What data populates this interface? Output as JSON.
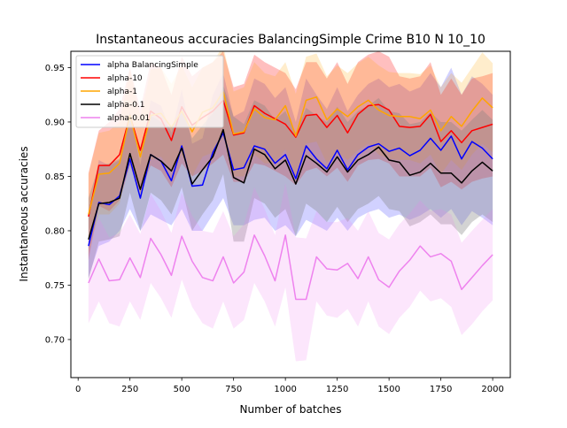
{
  "chart_data": {
    "type": "line",
    "title": "Instantaneous accuracies BalancingSimple Crime B10 N 10_10",
    "xlabel": "Number of batches",
    "ylabel": "Instantaneous accuracies",
    "xlim": [
      -35,
      2085
    ],
    "ylim": [
      0.665,
      0.965
    ],
    "xticks": [
      0,
      250,
      500,
      750,
      1000,
      1250,
      1500,
      1750,
      2000
    ],
    "yticks": [
      0.7,
      0.75,
      0.8,
      0.85,
      0.9,
      0.95
    ],
    "ytick_labels": [
      "0.70",
      "0.75",
      "0.80",
      "0.85",
      "0.90",
      "0.95"
    ],
    "grid": false,
    "legend_position": "top-left",
    "x": [
      50,
      100,
      150,
      200,
      250,
      300,
      350,
      400,
      450,
      500,
      550,
      600,
      650,
      700,
      750,
      800,
      850,
      900,
      950,
      1000,
      1050,
      1100,
      1150,
      1200,
      1250,
      1300,
      1350,
      1400,
      1450,
      1500,
      1550,
      1600,
      1650,
      1700,
      1750,
      1800,
      1850,
      1900,
      1950,
      2000
    ],
    "series": [
      {
        "name": "alpha BalancingSimple",
        "color": "#0000ff",
        "fill": "#0000ff",
        "fill_opacity": 0.18,
        "values": [
          0.786,
          0.826,
          0.824,
          0.832,
          0.866,
          0.83,
          0.87,
          0.864,
          0.846,
          0.878,
          0.841,
          0.842,
          0.872,
          0.89,
          0.856,
          0.858,
          0.878,
          0.875,
          0.862,
          0.87,
          0.848,
          0.878,
          0.866,
          0.857,
          0.874,
          0.856,
          0.87,
          0.877,
          0.88,
          0.873,
          0.876,
          0.869,
          0.874,
          0.885,
          0.874,
          0.887,
          0.866,
          0.882,
          0.876,
          0.866
        ],
        "lower": [
          0.757,
          0.786,
          0.79,
          0.8,
          0.82,
          0.8,
          0.815,
          0.81,
          0.805,
          0.82,
          0.8,
          0.8,
          0.815,
          0.83,
          0.805,
          0.805,
          0.81,
          0.812,
          0.8,
          0.805,
          0.795,
          0.81,
          0.805,
          0.8,
          0.812,
          0.8,
          0.812,
          0.817,
          0.82,
          0.812,
          0.815,
          0.81,
          0.814,
          0.82,
          0.812,
          0.82,
          0.805,
          0.818,
          0.812,
          0.805
        ],
        "upper": [
          0.815,
          0.865,
          0.86,
          0.865,
          0.91,
          0.86,
          0.92,
          0.915,
          0.89,
          0.93,
          0.88,
          0.885,
          0.925,
          0.945,
          0.905,
          0.91,
          0.94,
          0.935,
          0.922,
          0.932,
          0.9,
          0.94,
          0.925,
          0.912,
          0.932,
          0.91,
          0.925,
          0.935,
          0.94,
          0.932,
          0.935,
          0.928,
          0.932,
          0.945,
          0.932,
          0.95,
          0.925,
          0.942,
          0.935,
          0.925
        ]
      },
      {
        "name": "alpha-10",
        "color": "#ff0000",
        "fill": "#ff0000",
        "fill_opacity": 0.25,
        "values": [
          0.813,
          0.86,
          0.86,
          0.87,
          0.906,
          0.874,
          0.91,
          0.903,
          0.883,
          0.914,
          0.897,
          0.904,
          0.91,
          0.92,
          0.888,
          0.89,
          0.915,
          0.908,
          0.903,
          0.898,
          0.886,
          0.906,
          0.907,
          0.895,
          0.906,
          0.89,
          0.907,
          0.915,
          0.916,
          0.911,
          0.896,
          0.895,
          0.896,
          0.907,
          0.882,
          0.892,
          0.881,
          0.892,
          0.895,
          0.898
        ],
        "lower": [
          0.773,
          0.823,
          0.818,
          0.828,
          0.86,
          0.835,
          0.86,
          0.855,
          0.84,
          0.862,
          0.85,
          0.855,
          0.862,
          0.87,
          0.845,
          0.845,
          0.862,
          0.86,
          0.855,
          0.85,
          0.842,
          0.855,
          0.858,
          0.85,
          0.858,
          0.845,
          0.86,
          0.865,
          0.866,
          0.862,
          0.85,
          0.85,
          0.85,
          0.858,
          0.84,
          0.845,
          0.838,
          0.845,
          0.848,
          0.85
        ],
        "upper": [
          0.853,
          0.892,
          0.9,
          0.912,
          0.95,
          0.912,
          0.955,
          0.95,
          0.925,
          0.96,
          0.942,
          0.95,
          0.955,
          0.965,
          0.932,
          0.935,
          0.962,
          0.955,
          0.95,
          0.945,
          0.93,
          0.955,
          0.955,
          0.94,
          0.955,
          0.935,
          0.955,
          0.962,
          0.965,
          0.96,
          0.942,
          0.94,
          0.942,
          0.955,
          0.925,
          0.94,
          0.925,
          0.94,
          0.942,
          0.945
        ]
      },
      {
        "name": "alpha-1",
        "color": "#ffa500",
        "fill": "#ffa500",
        "fill_opacity": 0.2,
        "values": [
          0.815,
          0.852,
          0.853,
          0.862,
          0.906,
          0.868,
          0.906,
          0.908,
          0.895,
          0.91,
          0.891,
          0.909,
          0.913,
          0.928,
          0.889,
          0.891,
          0.912,
          0.904,
          0.902,
          0.915,
          0.887,
          0.92,
          0.923,
          0.902,
          0.912,
          0.905,
          0.914,
          0.92,
          0.911,
          0.906,
          0.905,
          0.905,
          0.903,
          0.911,
          0.892,
          0.905,
          0.896,
          0.91,
          0.922,
          0.913
        ],
        "lower": [
          0.778,
          0.815,
          0.815,
          0.825,
          0.865,
          0.83,
          0.865,
          0.868,
          0.855,
          0.87,
          0.85,
          0.868,
          0.872,
          0.885,
          0.85,
          0.85,
          0.87,
          0.862,
          0.862,
          0.875,
          0.848,
          0.88,
          0.882,
          0.862,
          0.872,
          0.865,
          0.874,
          0.88,
          0.87,
          0.866,
          0.865,
          0.865,
          0.862,
          0.87,
          0.852,
          0.865,
          0.856,
          0.87,
          0.88,
          0.872
        ],
        "upper": [
          0.852,
          0.89,
          0.892,
          0.9,
          0.948,
          0.905,
          0.948,
          0.95,
          0.935,
          0.952,
          0.932,
          0.95,
          0.955,
          0.97,
          0.928,
          0.932,
          0.955,
          0.945,
          0.942,
          0.955,
          0.926,
          0.96,
          0.963,
          0.942,
          0.952,
          0.945,
          0.954,
          0.96,
          0.952,
          0.946,
          0.945,
          0.945,
          0.944,
          0.952,
          0.932,
          0.945,
          0.936,
          0.95,
          0.964,
          0.954
        ]
      },
      {
        "name": "alpha-0.1",
        "color": "#000000",
        "fill": "#808080",
        "fill_opacity": 0.35,
        "values": [
          0.792,
          0.825,
          0.826,
          0.83,
          0.871,
          0.838,
          0.87,
          0.864,
          0.855,
          0.876,
          0.843,
          0.856,
          0.868,
          0.893,
          0.849,
          0.844,
          0.875,
          0.87,
          0.857,
          0.865,
          0.843,
          0.869,
          0.862,
          0.854,
          0.868,
          0.854,
          0.865,
          0.87,
          0.877,
          0.865,
          0.863,
          0.851,
          0.854,
          0.862,
          0.853,
          0.853,
          0.844,
          0.855,
          0.863,
          0.855
        ],
        "lower": [
          0.755,
          0.79,
          0.792,
          0.795,
          0.835,
          0.8,
          0.835,
          0.828,
          0.815,
          0.84,
          0.8,
          0.815,
          0.828,
          0.852,
          0.79,
          0.79,
          0.83,
          0.825,
          0.812,
          0.82,
          0.795,
          0.825,
          0.818,
          0.808,
          0.822,
          0.808,
          0.82,
          0.825,
          0.832,
          0.82,
          0.818,
          0.804,
          0.808,
          0.815,
          0.806,
          0.806,
          0.796,
          0.808,
          0.815,
          0.808
        ],
        "upper": [
          0.83,
          0.86,
          0.862,
          0.866,
          0.908,
          0.875,
          0.906,
          0.9,
          0.895,
          0.912,
          0.885,
          0.897,
          0.908,
          0.934,
          0.905,
          0.898,
          0.92,
          0.915,
          0.902,
          0.91,
          0.89,
          0.913,
          0.906,
          0.9,
          0.914,
          0.9,
          0.91,
          0.915,
          0.922,
          0.91,
          0.908,
          0.898,
          0.9,
          0.909,
          0.9,
          0.9,
          0.892,
          0.902,
          0.911,
          0.902
        ]
      },
      {
        "name": "alpha-0.01",
        "color": "#ee82ee",
        "fill": "#ee82ee",
        "fill_opacity": 0.2,
        "values": [
          0.752,
          0.774,
          0.754,
          0.755,
          0.775,
          0.757,
          0.793,
          0.778,
          0.759,
          0.795,
          0.772,
          0.757,
          0.754,
          0.776,
          0.752,
          0.762,
          0.796,
          0.777,
          0.754,
          0.796,
          0.737,
          0.737,
          0.776,
          0.765,
          0.764,
          0.77,
          0.756,
          0.776,
          0.755,
          0.748,
          0.763,
          0.773,
          0.786,
          0.776,
          0.779,
          0.772,
          0.746,
          0.757,
          0.768,
          0.778
        ],
        "lower": [
          0.715,
          0.735,
          0.715,
          0.712,
          0.735,
          0.718,
          0.752,
          0.738,
          0.72,
          0.755,
          0.73,
          0.715,
          0.71,
          0.735,
          0.71,
          0.718,
          0.752,
          0.735,
          0.712,
          0.748,
          0.68,
          0.681,
          0.735,
          0.722,
          0.72,
          0.728,
          0.712,
          0.735,
          0.712,
          0.705,
          0.72,
          0.73,
          0.745,
          0.735,
          0.738,
          0.73,
          0.704,
          0.714,
          0.726,
          0.736
        ],
        "upper": [
          0.79,
          0.812,
          0.794,
          0.798,
          0.815,
          0.797,
          0.834,
          0.818,
          0.798,
          0.835,
          0.814,
          0.8,
          0.798,
          0.818,
          0.795,
          0.806,
          0.84,
          0.82,
          0.796,
          0.844,
          0.794,
          0.793,
          0.818,
          0.808,
          0.808,
          0.812,
          0.8,
          0.818,
          0.798,
          0.792,
          0.806,
          0.816,
          0.828,
          0.818,
          0.82,
          0.815,
          0.789,
          0.8,
          0.81,
          0.82
        ]
      }
    ]
  }
}
